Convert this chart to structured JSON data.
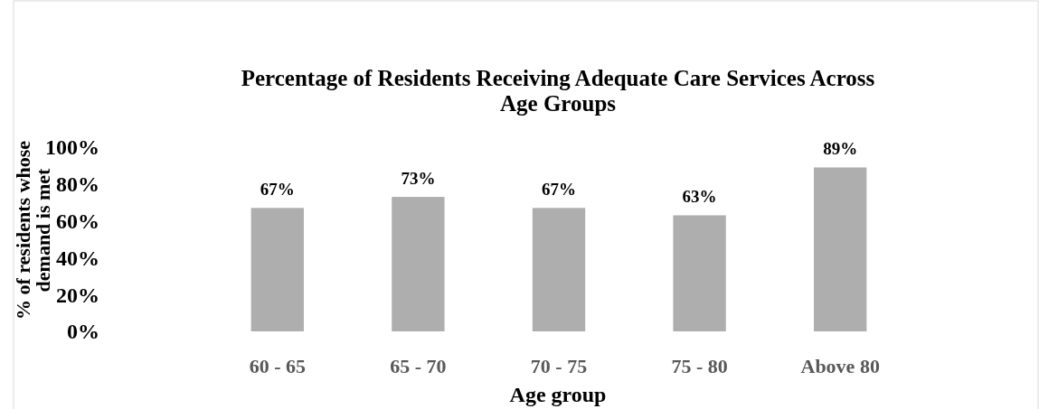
{
  "chart_data": {
    "type": "bar",
    "title": "Percentage of Residents Receiving Adequate Care Services Across Age Groups",
    "xlabel": "Age group",
    "ylabel": "% of residents whose demand is met",
    "categories": [
      "60 - 65",
      "65 - 70",
      "70 - 75",
      "75 - 80",
      "Above 80"
    ],
    "values": [
      67,
      73,
      67,
      63,
      89
    ],
    "color": "#aeaeae",
    "value_labels": [
      "67%",
      "73%",
      "67%",
      "63%",
      "89%"
    ],
    "ylim": [
      0,
      100
    ],
    "yticks": [
      {
        "value": 0,
        "label": "0%"
      },
      {
        "value": 20,
        "label": "20%"
      },
      {
        "value": 40,
        "label": "40%"
      },
      {
        "value": 60,
        "label": "60%"
      },
      {
        "value": 80,
        "label": "80%"
      },
      {
        "value": 100,
        "label": "100%"
      }
    ],
    "grid": false
  }
}
